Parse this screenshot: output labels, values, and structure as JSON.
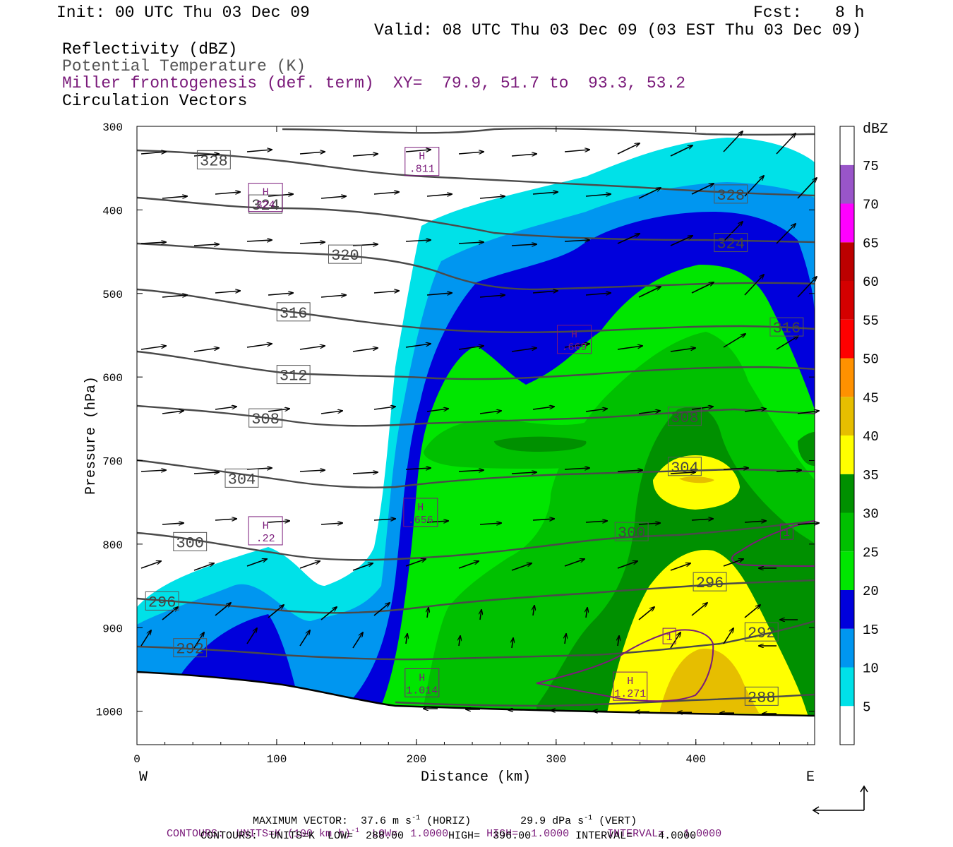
{
  "header": {
    "init": "Init: 00 UTC Thu 03 Dec 09",
    "fcst_label": "Fcst:",
    "fcst_value": "8 h",
    "valid": "Valid: 08 UTC Thu 03 Dec 09 (03 EST Thu 03 Dec 09)",
    "field1": "Reflectivity (dBZ)",
    "field2": "Potential Temperature (K)",
    "field3": "Miller frontogenesis (def. term)",
    "xy": "XY=  79.9, 51.7 to  93.3, 53.2",
    "field4": "Circulation Vectors"
  },
  "colors": {
    "theta": "#4a4a4a",
    "fronto": "#7a1a7a",
    "vectors": "#000000"
  },
  "chart_data": {
    "type": "cross-section",
    "xlabel": "Distance (km)",
    "ylabel": "Pressure (hPa)",
    "xlim": [
      0,
      485
    ],
    "ylim": [
      1040,
      300
    ],
    "x_ticks": [
      "0",
      "100",
      "200",
      "300",
      "400"
    ],
    "y_ticks": [
      "300",
      "400",
      "500",
      "600",
      "700",
      "800",
      "900",
      "1000"
    ],
    "left_end": "W",
    "right_end": "E",
    "colorbar": {
      "unit": "dBZ",
      "levels": [
        "5",
        "10",
        "15",
        "20",
        "25",
        "30",
        "35",
        "40",
        "45",
        "50",
        "55",
        "60",
        "65",
        "70",
        "75"
      ],
      "colors": [
        "#ffffff",
        "#00e1e8",
        "#0096f0",
        "#0000dc",
        "#00e600",
        "#00c000",
        "#009000",
        "#ffff00",
        "#e6be00",
        "#ff9100",
        "#ff0000",
        "#d40000",
        "#bc0000",
        "#ff00ff",
        "#9955c9"
      ]
    },
    "theta_labels": [
      {
        "text": "328",
        "x": 55,
        "p": 340
      },
      {
        "text": "324",
        "x": 92,
        "p": 393
      },
      {
        "text": "320",
        "x": 149,
        "p": 453
      },
      {
        "text": "316",
        "x": 112,
        "p": 522
      },
      {
        "text": "312",
        "x": 112,
        "p": 597
      },
      {
        "text": "308",
        "x": 92,
        "p": 649
      },
      {
        "text": "304",
        "x": 75,
        "p": 721
      },
      {
        "text": "300",
        "x": 38,
        "p": 797
      },
      {
        "text": "296",
        "x": 18,
        "p": 868
      },
      {
        "text": "292",
        "x": 38,
        "p": 924
      },
      {
        "text": "328",
        "x": 425,
        "p": 381
      },
      {
        "text": "324",
        "x": 425,
        "p": 439
      },
      {
        "text": "316",
        "x": 465,
        "p": 540
      },
      {
        "text": "308",
        "x": 392,
        "p": 647
      },
      {
        "text": "304",
        "x": 392,
        "p": 707
      },
      {
        "text": "300",
        "x": 354,
        "p": 785
      },
      {
        "text": "296",
        "x": 410,
        "p": 845
      },
      {
        "text": "292",
        "x": 447,
        "p": 905
      },
      {
        "text": "288",
        "x": 447,
        "p": 982
      }
    ],
    "fronto_maxima": [
      {
        "label": "H",
        "value": ".811",
        "x": 204,
        "p": 342
      },
      {
        "label": "H",
        "value": "324",
        "x": 92,
        "p": 385
      },
      {
        "label": "H",
        "value": ".669",
        "x": 313,
        "p": 555
      },
      {
        "label": "H",
        "value": ".656",
        "x": 203,
        "p": 762
      },
      {
        "label": "H",
        "value": ".22",
        "x": 92,
        "p": 784
      },
      {
        "label": "H",
        "value": "1.014",
        "x": 204,
        "p": 966
      },
      {
        "label": "H",
        "value": "1.271",
        "x": 353,
        "p": 970
      }
    ],
    "fronto_contour_labels": [
      {
        "text": "1",
        "x": 465,
        "p": 785
      },
      {
        "text": "1",
        "x": 381,
        "p": 910
      }
    ],
    "vectors_note": "circulation vectors"
  },
  "footer": {
    "line1a": "MAXIMUM VECTOR:  37.6 m s",
    "line1b": "-1",
    "line1c": " (HORIZ)",
    "line1d": "29.9 dPa s",
    "line1e": "-1",
    "line1f": " (VERT)",
    "line2a": "CONTOURS:  UNITS=K (100 km h)",
    "line2b": "-1",
    "line2c": "  LOW=  1.0000      HIGH=  1.0000      INTERVAL=   1.0000",
    "line3": "CONTOURS:  UNITS=K  LOW=  288.00       HIGH=  396.00       INTERVAL=    4.0000"
  }
}
